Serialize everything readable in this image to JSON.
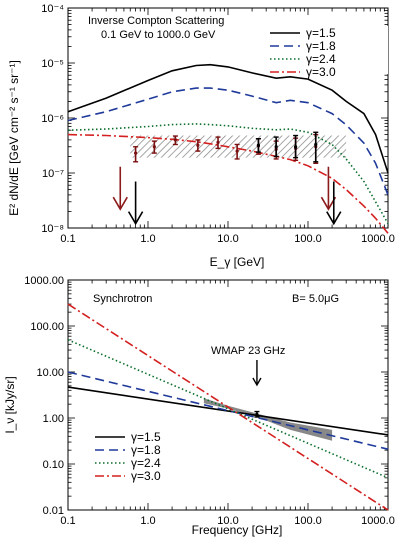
{
  "chart_data": [
    {
      "type": "line",
      "xscale": "log",
      "yscale": "log",
      "xlim": [
        0.1,
        1000.0
      ],
      "ylim": [
        1e-08,
        0.0001
      ],
      "xlabel": "E_γ [GeV]",
      "ylabel": "E² dN/dE [GeV cm⁻² s⁻¹ sr⁻¹]",
      "x_ticks": [
        "0.1",
        "1.0",
        "10.0",
        "100.0",
        "1000.0"
      ],
      "y_ticks": [
        "10⁻⁸",
        "10⁻⁷",
        "10⁻⁶",
        "10⁻⁵",
        "10⁻⁴"
      ],
      "annotation_lines": [
        "Inverse Compton Scattering",
        "0.1 GeV to 1000.0 GeV"
      ],
      "legend_position": "top-right",
      "series": [
        {
          "name": "γ=1.5",
          "color": "#000000",
          "style": "solid",
          "x": [
            0.1,
            0.3,
            1,
            2,
            4,
            6,
            10,
            20,
            40,
            60,
            100,
            200,
            300,
            500,
            700,
            1000
          ],
          "y": [
            1.3e-06,
            2.3e-06,
            4.8e-06,
            7.2e-06,
            9e-06,
            9.3e-06,
            8.5e-06,
            6.6e-06,
            5.3e-06,
            5.6e-06,
            5.1e-06,
            3.2e-06,
            2e-06,
            1.2e-06,
            5e-07,
            1e-07
          ]
        },
        {
          "name": "γ=1.8",
          "color": "#1f3a9a",
          "style": "dashed",
          "x": [
            0.1,
            0.3,
            1,
            2,
            4,
            6,
            10,
            20,
            40,
            60,
            100,
            200,
            300,
            500,
            700,
            1000
          ],
          "y": [
            9e-07,
            1.3e-06,
            2.2e-06,
            3e-06,
            3.5e-06,
            3.5e-06,
            3.2e-06,
            2.5e-06,
            1.9e-06,
            2.1e-06,
            1.9e-06,
            1.2e-06,
            7.5e-07,
            3.5e-07,
            1.5e-07,
            4e-08
          ]
        },
        {
          "name": "γ=2.4",
          "color": "#0a6e2a",
          "style": "dotted",
          "x": [
            0.1,
            0.3,
            1,
            2,
            4,
            6,
            10,
            20,
            40,
            60,
            100,
            200,
            300,
            500,
            700,
            1000
          ],
          "y": [
            6e-07,
            6.3e-07,
            7e-07,
            7.6e-07,
            7.8e-07,
            7.6e-07,
            7.2e-07,
            6.5e-07,
            6.1e-07,
            6.3e-07,
            5.5e-07,
            3.3e-07,
            1.8e-07,
            7e-08,
            3e-08,
            1.2e-08
          ]
        },
        {
          "name": "γ=3.0",
          "color": "#d42020",
          "style": "dashdot",
          "x": [
            0.1,
            0.3,
            1,
            2,
            4,
            6,
            10,
            20,
            40,
            60,
            100,
            200,
            300,
            500,
            700,
            1000
          ],
          "y": [
            5e-07,
            4.8e-07,
            4.4e-07,
            4.1e-07,
            3.7e-07,
            3.4e-07,
            3e-07,
            2.5e-07,
            2e-07,
            1.75e-07,
            1.35e-07,
            8e-08,
            5e-08,
            2.5e-08,
            1.5e-08,
            8e-09
          ]
        }
      ],
      "hatched_band": {
        "x": [
          0.6,
          300
        ],
        "y": [
          1.9e-07,
          4.8e-07
        ],
        "color": "#888888"
      },
      "data_points": {
        "color": "#7a1010",
        "x": [
          0.7,
          1.2,
          2.2,
          4.2,
          7.5,
          13,
          24,
          40,
          70,
          125
        ],
        "y": [
          2.3e-07,
          3e-07,
          4e-07,
          3.2e-07,
          3.6e-07,
          2.5e-07,
          3.1e-07,
          2.7e-07,
          2.8e-07,
          3e-07
        ],
        "ylo": [
          1.6e-07,
          2.3e-07,
          3.3e-07,
          2.5e-07,
          2.8e-07,
          1.8e-07,
          2.2e-07,
          1.8e-07,
          1.7e-07,
          1.5e-07
        ],
        "yhi": [
          3e-07,
          3.8e-07,
          4.7e-07,
          4e-07,
          4.5e-07,
          3.3e-07,
          4.2e-07,
          3.8e-07,
          4.3e-07,
          5e-07
        ]
      },
      "overlay_points": {
        "color": "#000000",
        "x": [
          24,
          40,
          70,
          125
        ],
        "y": [
          3.2e-07,
          3e-07,
          3e-07,
          3.3e-07
        ],
        "ylo": [
          2.4e-07,
          2e-07,
          1.9e-07,
          1.6e-07
        ],
        "yhi": [
          4.2e-07,
          4.5e-07,
          4.8e-07,
          5.5e-07
        ]
      },
      "upper_limits": [
        {
          "x": 0.45,
          "y_top": 1.3e-07,
          "y_tip": 2.2e-08,
          "color": "#8b1a1a"
        },
        {
          "x": 0.7,
          "y_top": 7e-08,
          "y_tip": 1.2e-08,
          "color": "#000000"
        },
        {
          "x": 180,
          "y_top": 1.3e-07,
          "y_tip": 2.2e-08,
          "color": "#8b1a1a"
        },
        {
          "x": 210,
          "y_top": 7e-08,
          "y_tip": 1.2e-08,
          "color": "#000000"
        }
      ]
    },
    {
      "type": "line",
      "xscale": "log",
      "yscale": "log",
      "xlim": [
        0.1,
        1000.0
      ],
      "ylim": [
        0.01,
        1000.0
      ],
      "xlabel": "Frequency [GHz]",
      "ylabel": "I_ν [kJy/sr]",
      "x_ticks": [
        "0.1",
        "1.0",
        "10.0",
        "100.0",
        "1000.0"
      ],
      "y_ticks": [
        "0.01",
        "0.10",
        "1.00",
        "10.00",
        "100.00",
        "1000.00"
      ],
      "label_left": "Synchrotron",
      "label_right": "B=  5.0μG",
      "wmap_label": "WMAP 23 GHz",
      "wmap_arrow_x": 23,
      "legend_position": "bottom-left",
      "series": [
        {
          "name": "γ=1.5",
          "color": "#000000",
          "style": "solid",
          "x": [
            0.1,
            1000
          ],
          "y": [
            4.7,
            0.43
          ]
        },
        {
          "name": "γ=1.8",
          "color": "#1f3a9a",
          "style": "dashed",
          "x": [
            0.1,
            1000
          ],
          "y": [
            10,
            0.21
          ]
        },
        {
          "name": "γ=2.4",
          "color": "#0a6e2a",
          "style": "dotted",
          "x": [
            0.1,
            1000
          ],
          "y": [
            50,
            0.05
          ]
        },
        {
          "name": "γ=3.0",
          "color": "#d42020",
          "style": "dashdot",
          "x": [
            0.1,
            1000
          ],
          "y": [
            300,
            0.01
          ]
        }
      ],
      "shaded_band": {
        "color": "#888888",
        "x": [
          5,
          10,
          23,
          60,
          200,
          200,
          60,
          23,
          10,
          5
        ],
        "y": [
          2.7,
          1.85,
          1.25,
          0.8,
          0.55,
          0.32,
          0.55,
          1.05,
          1.6,
          2.1
        ]
      },
      "data_point": {
        "x": 23,
        "y": 1.2,
        "ylo": 1.05,
        "yhi": 1.38,
        "color": "#000000"
      }
    }
  ]
}
